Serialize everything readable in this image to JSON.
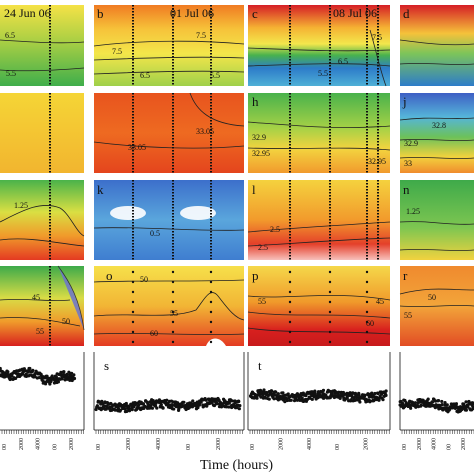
{
  "figure": {
    "date_labels": [
      "24 Jun 06",
      "01 Jul 06",
      "08 Jul 06"
    ],
    "x_axis_label": "Time (hours)",
    "panel_letters": [
      "b",
      "c",
      "d",
      "h",
      "j",
      "k",
      "l",
      "n",
      "o",
      "p",
      "r",
      "s",
      "t"
    ],
    "contour_labels": {
      "row1_a": [
        "6.5",
        "5.5"
      ],
      "row1_b": [
        "7.5",
        "7.5",
        "6.5",
        "5.5"
      ],
      "row1_c": [
        "6.5",
        "5.5",
        "7.5"
      ],
      "row2_f": [
        "33.05",
        "33.05"
      ],
      "row2_g": [
        "32.9",
        "32.95",
        "32.95"
      ],
      "row2_h": [
        "32.8",
        "32.9",
        "33"
      ],
      "row3_i": [
        "1.25"
      ],
      "row3_j": [
        "0.5"
      ],
      "row3_k": [
        "2.5",
        "2.5"
      ],
      "row3_l": [
        "1.25"
      ],
      "row4_m": [
        "45",
        "50",
        "55"
      ],
      "row4_n": [
        "50",
        "55",
        "60"
      ],
      "row4_o": [
        "55",
        "45",
        "60"
      ],
      "row4_p": [
        "50",
        "55"
      ]
    },
    "tick_labels": [
      "00",
      "2000",
      "4000"
    ],
    "colors": {
      "red": "#d7191c",
      "orange": "#f08c2e",
      "yellow": "#f7e64a",
      "green": "#3daa4a",
      "blue": "#2c6fc9",
      "white": "#ffffff",
      "dots": "#111111"
    }
  }
}
